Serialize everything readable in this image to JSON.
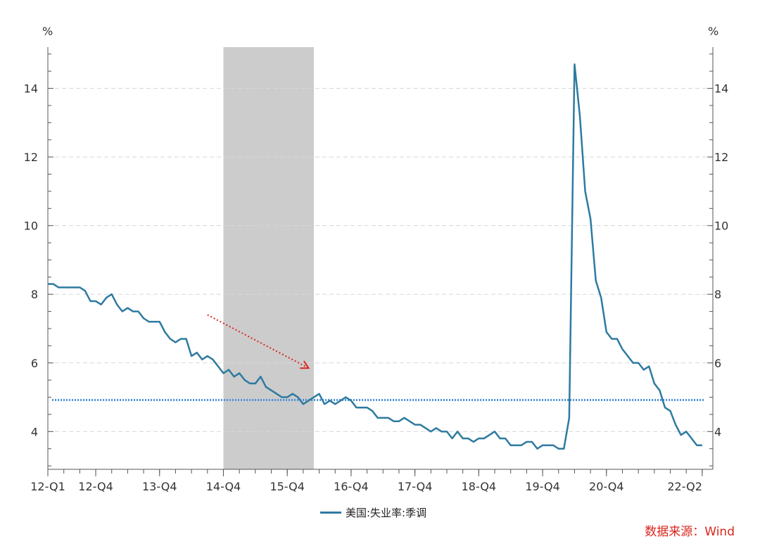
{
  "chart_data": {
    "type": "line",
    "y_unit_left": "%",
    "y_unit_right": "%",
    "ylim": [
      2.9,
      15.2
    ],
    "y_ticks": [
      4,
      6,
      8,
      10,
      12,
      14
    ],
    "y_grid": true,
    "x_tick_labels": [
      "12-Q1",
      "12-Q4",
      "13-Q4",
      "14-Q4",
      "15-Q4",
      "16-Q4",
      "17-Q4",
      "18-Q4",
      "19-Q4",
      "20-Q4",
      "22-Q2"
    ],
    "x_tick_months": [
      0,
      9,
      21,
      33,
      45,
      57,
      69,
      81,
      93,
      105,
      123
    ],
    "x_start": "2012-01",
    "x_end": "2022-06",
    "shaded_period": {
      "start": "2014-10",
      "end": "2016-03"
    },
    "reference_line": {
      "value": 4.92,
      "style": "dotted"
    },
    "trend_arrow": {
      "start": [
        "2014-07",
        7.4
      ],
      "end": [
        "2016-02",
        5.85
      ]
    },
    "series": [
      {
        "name": "美国:失业率:季调",
        "color": "#2e7aa0",
        "values": [
          8.3,
          8.3,
          8.2,
          8.2,
          8.2,
          8.2,
          8.2,
          8.1,
          7.8,
          7.8,
          7.7,
          7.9,
          8.0,
          7.7,
          7.5,
          7.6,
          7.5,
          7.5,
          7.3,
          7.2,
          7.2,
          7.2,
          6.9,
          6.7,
          6.6,
          6.7,
          6.7,
          6.2,
          6.3,
          6.1,
          6.2,
          6.1,
          5.9,
          5.7,
          5.8,
          5.6,
          5.7,
          5.5,
          5.4,
          5.4,
          5.6,
          5.3,
          5.2,
          5.1,
          5.0,
          5.0,
          5.1,
          5.0,
          4.8,
          4.9,
          5.0,
          5.1,
          4.8,
          4.9,
          4.8,
          4.9,
          5.0,
          4.9,
          4.7,
          4.7,
          4.7,
          4.6,
          4.4,
          4.4,
          4.4,
          4.3,
          4.3,
          4.4,
          4.3,
          4.2,
          4.2,
          4.1,
          4.0,
          4.1,
          4.0,
          4.0,
          3.8,
          4.0,
          3.8,
          3.8,
          3.7,
          3.8,
          3.8,
          3.9,
          4.0,
          3.8,
          3.8,
          3.6,
          3.6,
          3.6,
          3.7,
          3.7,
          3.5,
          3.6,
          3.6,
          3.6,
          3.5,
          3.5,
          4.4,
          14.7,
          13.2,
          11.0,
          10.2,
          8.4,
          7.9,
          6.9,
          6.7,
          6.7,
          6.4,
          6.2,
          6.0,
          6.0,
          5.8,
          5.9,
          5.4,
          5.2,
          4.7,
          4.6,
          4.2,
          3.9,
          4.0,
          3.8,
          3.6,
          3.6
        ]
      }
    ]
  },
  "legend": {
    "label": "美国:失业率:季调"
  },
  "source": {
    "text": "数据来源：Wind"
  },
  "colors": {
    "line": "#2e7aa0",
    "reference": "#4a90d9",
    "shade": "#cccccc",
    "arrow": "#d9261c",
    "grid": "#d8d8d8"
  }
}
